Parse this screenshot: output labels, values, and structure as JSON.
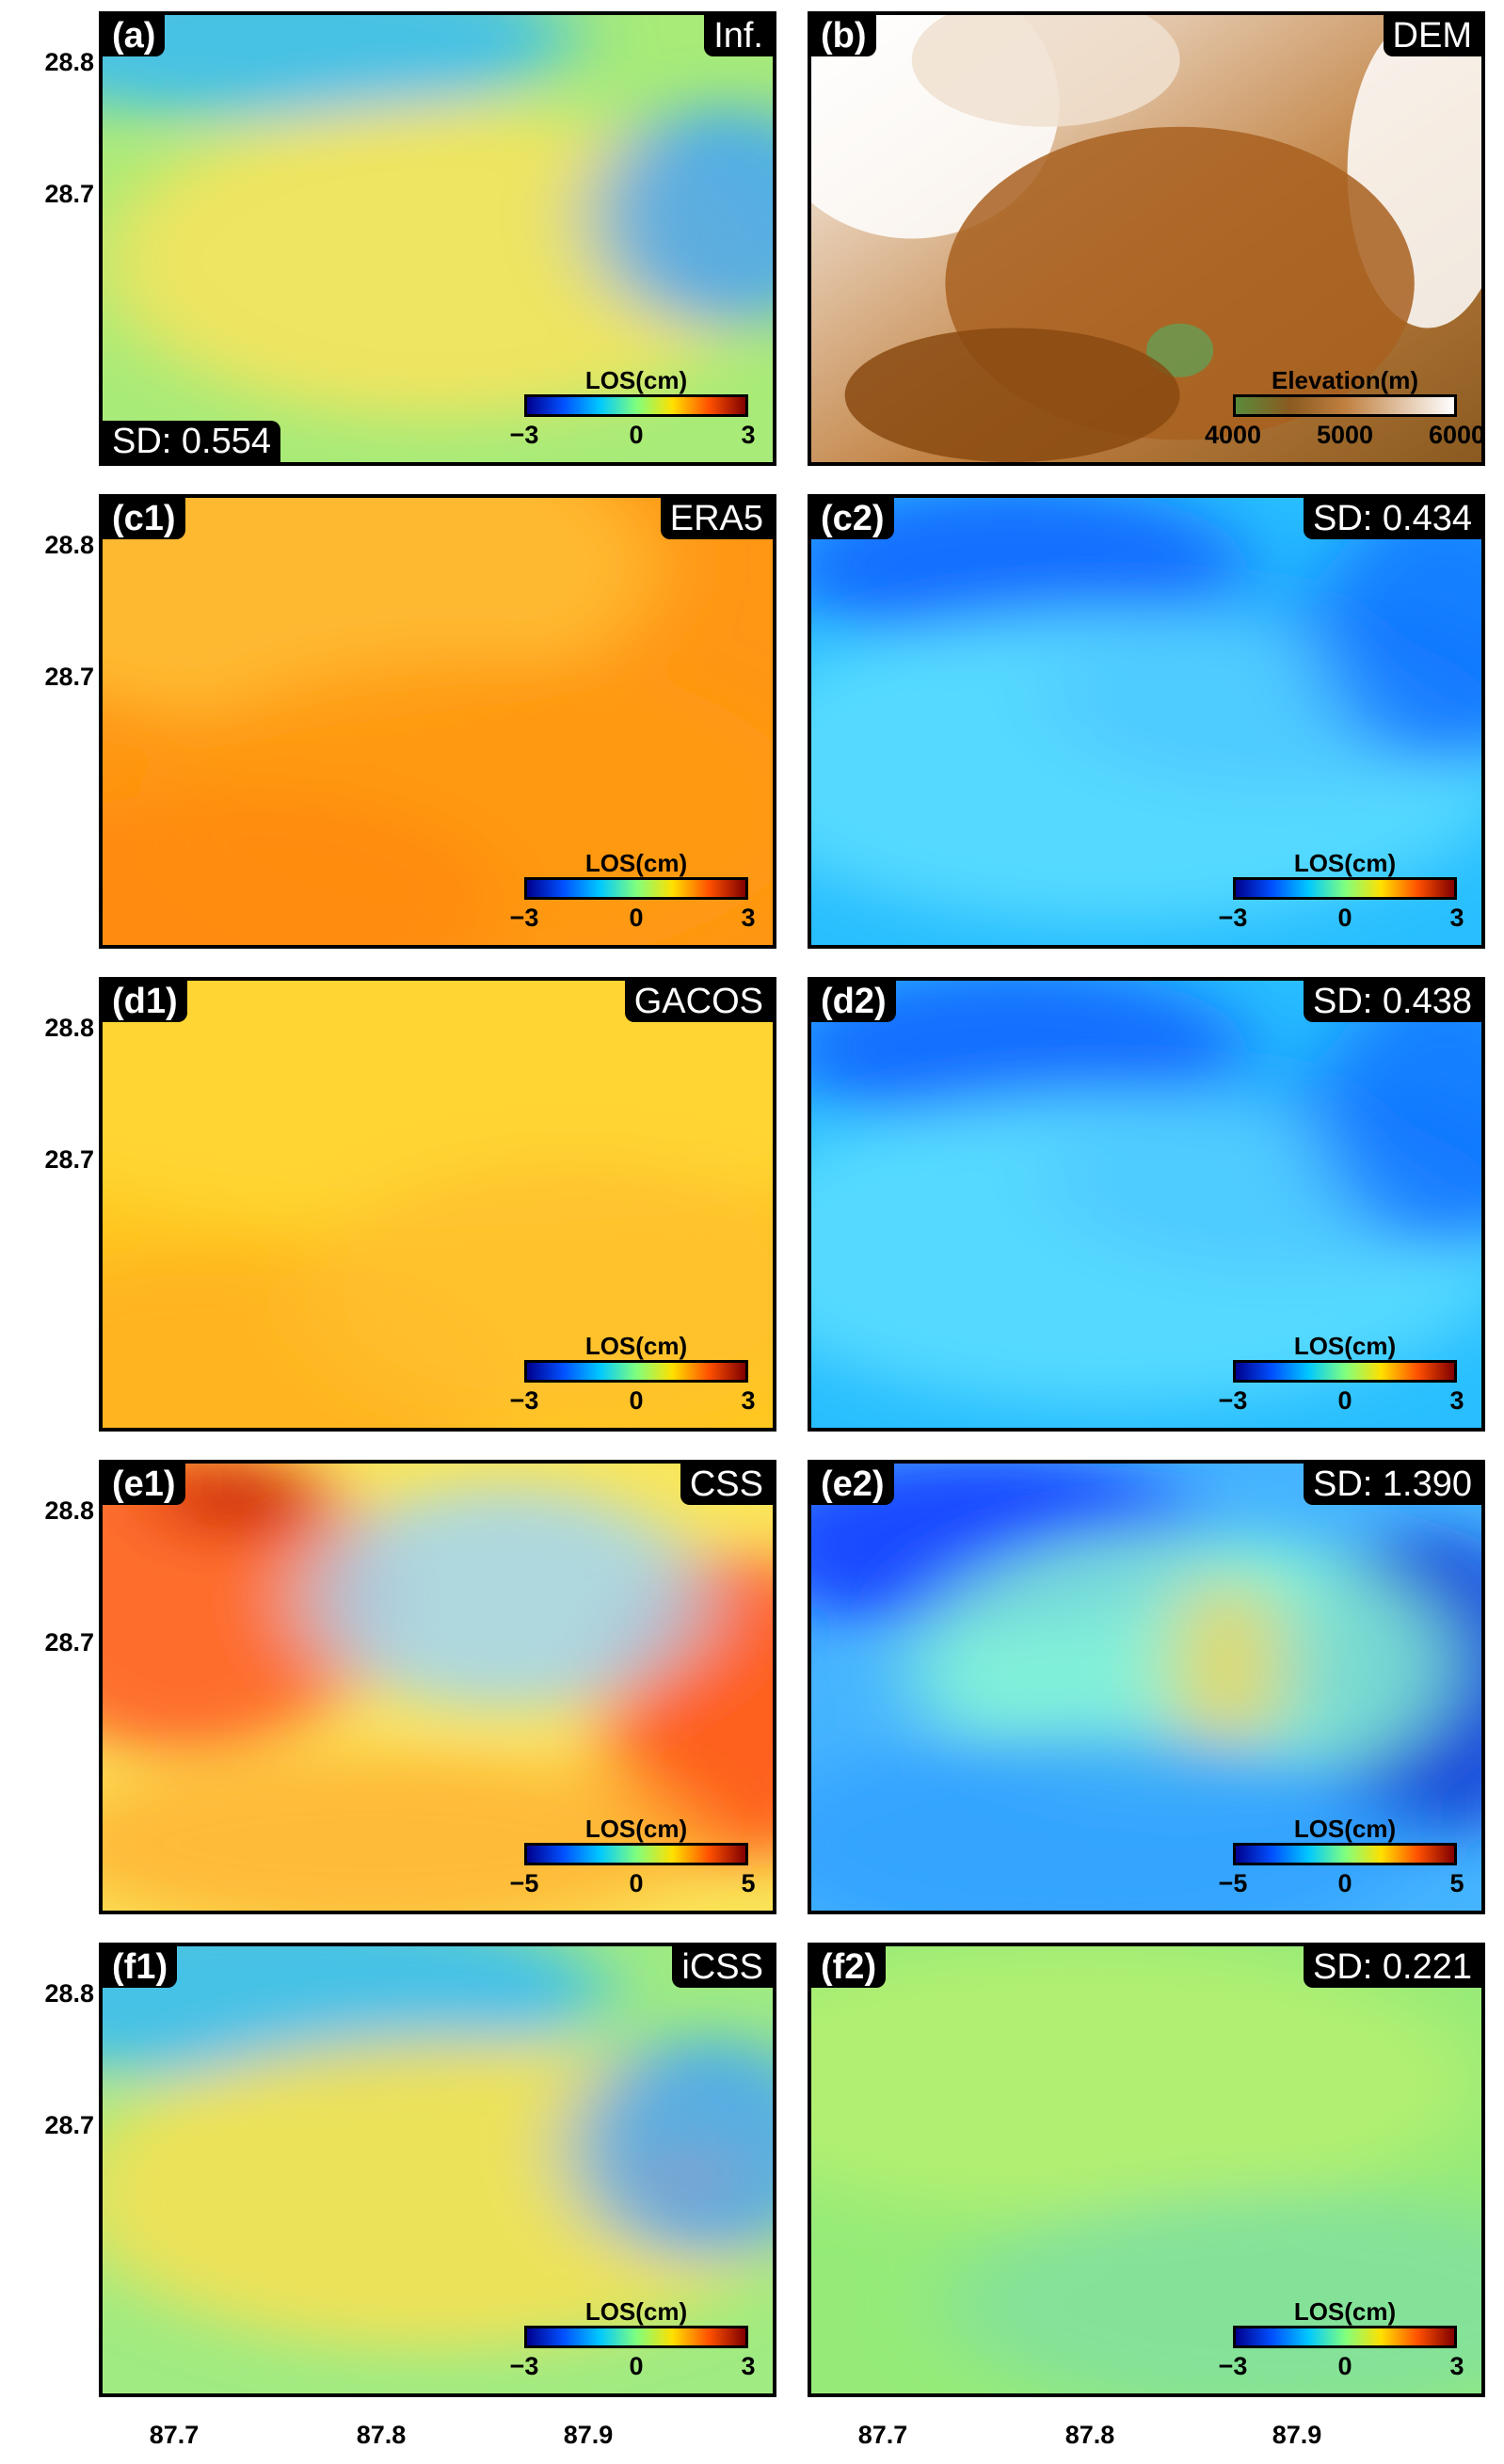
{
  "panels": [
    {
      "id": "a",
      "label": "(a)",
      "title": "Inf.",
      "sd": "SD: 0.554",
      "cbar": "los3",
      "field": "inf"
    },
    {
      "id": "b",
      "label": "(b)",
      "title": "DEM",
      "sd": "",
      "cbar": "elev",
      "field": "dem"
    },
    {
      "id": "c1",
      "label": "(c1)",
      "title": "ERA5",
      "sd": "",
      "cbar": "los3",
      "field": "era5"
    },
    {
      "id": "c2",
      "label": "(c2)",
      "title": "SD: 0.434",
      "sd": "",
      "cbar": "los3",
      "field": "corr_blue"
    },
    {
      "id": "d1",
      "label": "(d1)",
      "title": "GACOS",
      "sd": "",
      "cbar": "los3",
      "field": "gacos"
    },
    {
      "id": "d2",
      "label": "(d2)",
      "title": "SD: 0.438",
      "sd": "",
      "cbar": "los3",
      "field": "corr_blue"
    },
    {
      "id": "e1",
      "label": "(e1)",
      "title": "CSS",
      "sd": "",
      "cbar": "los5",
      "field": "css"
    },
    {
      "id": "e2",
      "label": "(e2)",
      "title": "SD: 1.390",
      "sd": "",
      "cbar": "los5",
      "field": "css_corr"
    },
    {
      "id": "f1",
      "label": "(f1)",
      "title": "iCSS",
      "sd": "",
      "cbar": "los3",
      "field": "icss"
    },
    {
      "id": "f2",
      "label": "(f2)",
      "title": "SD: 0.221",
      "sd": "",
      "cbar": "los3",
      "field": "flat"
    }
  ],
  "colorbars": {
    "los3": {
      "title": "LOS(cm)",
      "ticks": [
        "−3",
        "0",
        "3"
      ]
    },
    "los5": {
      "title": "LOS(cm)",
      "ticks": [
        "−5",
        "0",
        "5"
      ]
    },
    "elev": {
      "title": "Elevation(m)",
      "ticks": [
        "4000",
        "5000",
        "6000"
      ]
    }
  },
  "axes": {
    "y_ticks": [
      "28.8",
      "28.7"
    ],
    "x_ticks": [
      "87.7",
      "87.8",
      "87.9"
    ]
  },
  "colors": {
    "los": [
      "#00008f",
      "#0050ff",
      "#00c8ff",
      "#7fff7f",
      "#ffe000",
      "#ff5000",
      "#800000"
    ],
    "elev": [
      "#5a8a3a",
      "#8a5a20",
      "#c08040",
      "#e0c0a0",
      "#ffffff"
    ]
  }
}
